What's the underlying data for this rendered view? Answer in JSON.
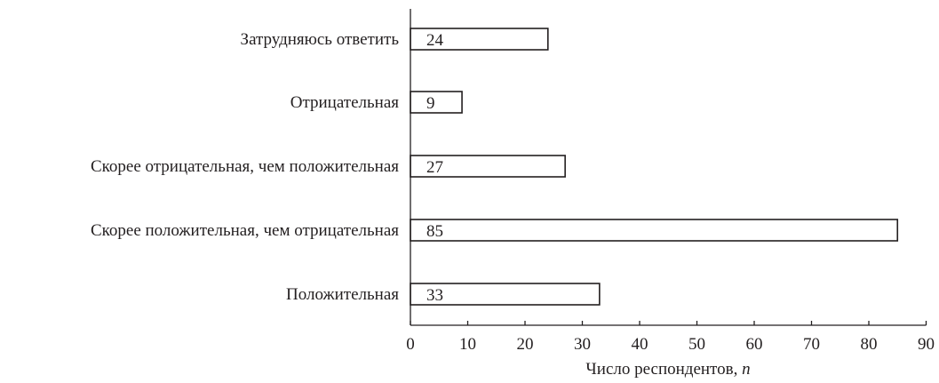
{
  "chart_data": {
    "type": "bar",
    "orientation": "horizontal",
    "title": "",
    "xlabel": "Число респондентов, ",
    "xlabel_italic": "n",
    "ylabel": "",
    "categories": [
      "Затрудняюсь ответить",
      "Отрицательная",
      "Скорее отрицательная, чем положительная",
      "Скорее положительная, чем отрицательная",
      "Положительная"
    ],
    "values": [
      24,
      9,
      27,
      85,
      33
    ],
    "data_labels": [
      "24",
      "9",
      "27",
      "85",
      "33"
    ],
    "xlim": [
      0,
      90
    ],
    "xticks": [
      0,
      10,
      20,
      30,
      40,
      50,
      60,
      70,
      80,
      90
    ],
    "xtick_labels": [
      "0",
      "10",
      "20",
      "30",
      "40",
      "50",
      "60",
      "70",
      "80",
      "90"
    ],
    "grid": false,
    "legend": false
  }
}
